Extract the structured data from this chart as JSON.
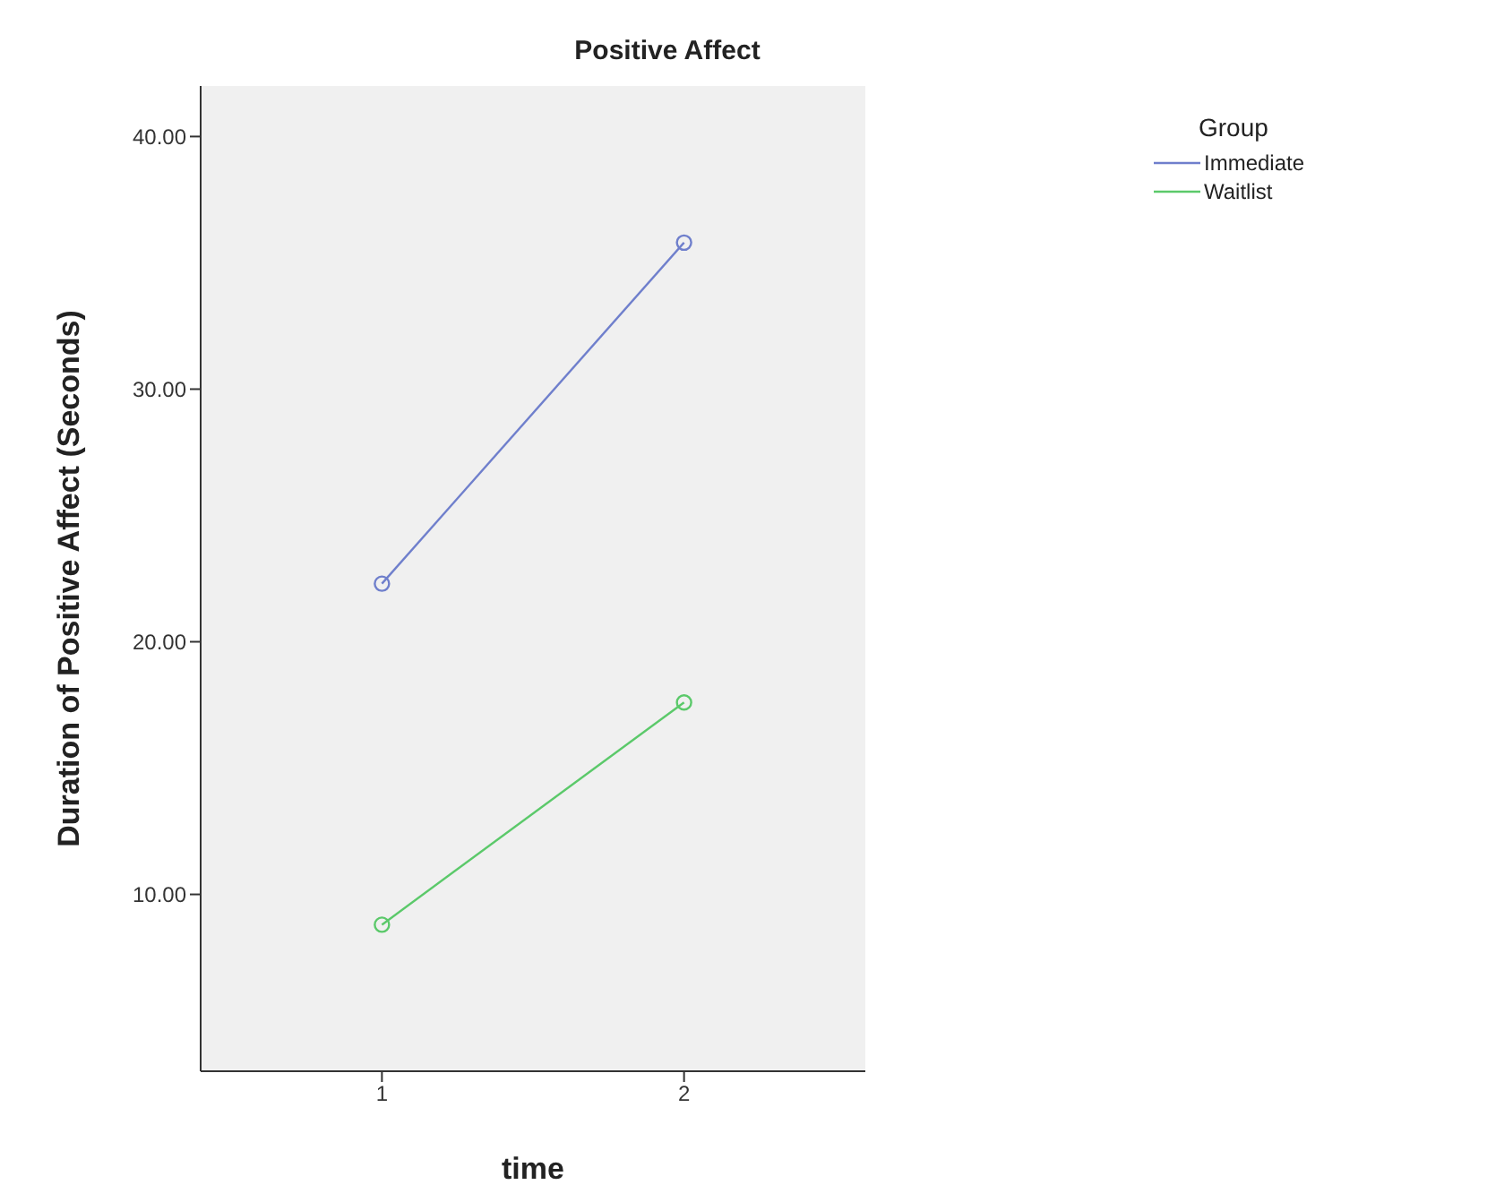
{
  "chart_data": {
    "type": "line",
    "title": "Positive Affect",
    "xlabel": "time",
    "ylabel": "Duration of Positive Affect (Seconds)",
    "legend_title": "Group",
    "x": [
      1,
      2
    ],
    "series": [
      {
        "name": "Immediate",
        "color": "#6f7fcc",
        "values": [
          22.3,
          35.8
        ]
      },
      {
        "name": "Waitlist",
        "color": "#5bc96a",
        "values": [
          8.8,
          17.6
        ]
      }
    ],
    "xlim": [
      0.4,
      2.6
    ],
    "xticks": [
      1,
      2
    ],
    "ylim": [
      3,
      42
    ],
    "yticks": [
      {
        "value": 10,
        "label": "10.00"
      },
      {
        "value": 20,
        "label": "20.00"
      },
      {
        "value": 30,
        "label": "30.00"
      },
      {
        "value": 40,
        "label": "40.00"
      }
    ],
    "grid": false,
    "legend": "top right",
    "marker": "circle",
    "line_style": "solid"
  }
}
